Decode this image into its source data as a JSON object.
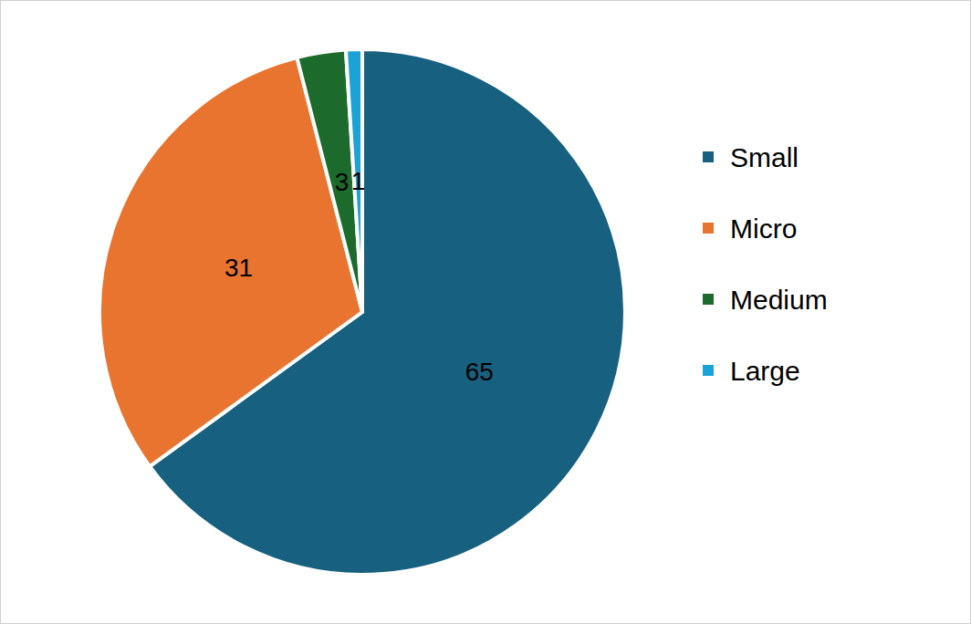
{
  "chart_data": {
    "type": "pie",
    "categories": [
      "Small",
      "Micro",
      "Medium",
      "Large"
    ],
    "values": [
      65,
      31,
      3,
      1
    ],
    "colors": [
      "#17607f",
      "#e8742f",
      "#1c6b2c",
      "#1ba3d8"
    ],
    "data_labels": true,
    "legend": "right"
  }
}
